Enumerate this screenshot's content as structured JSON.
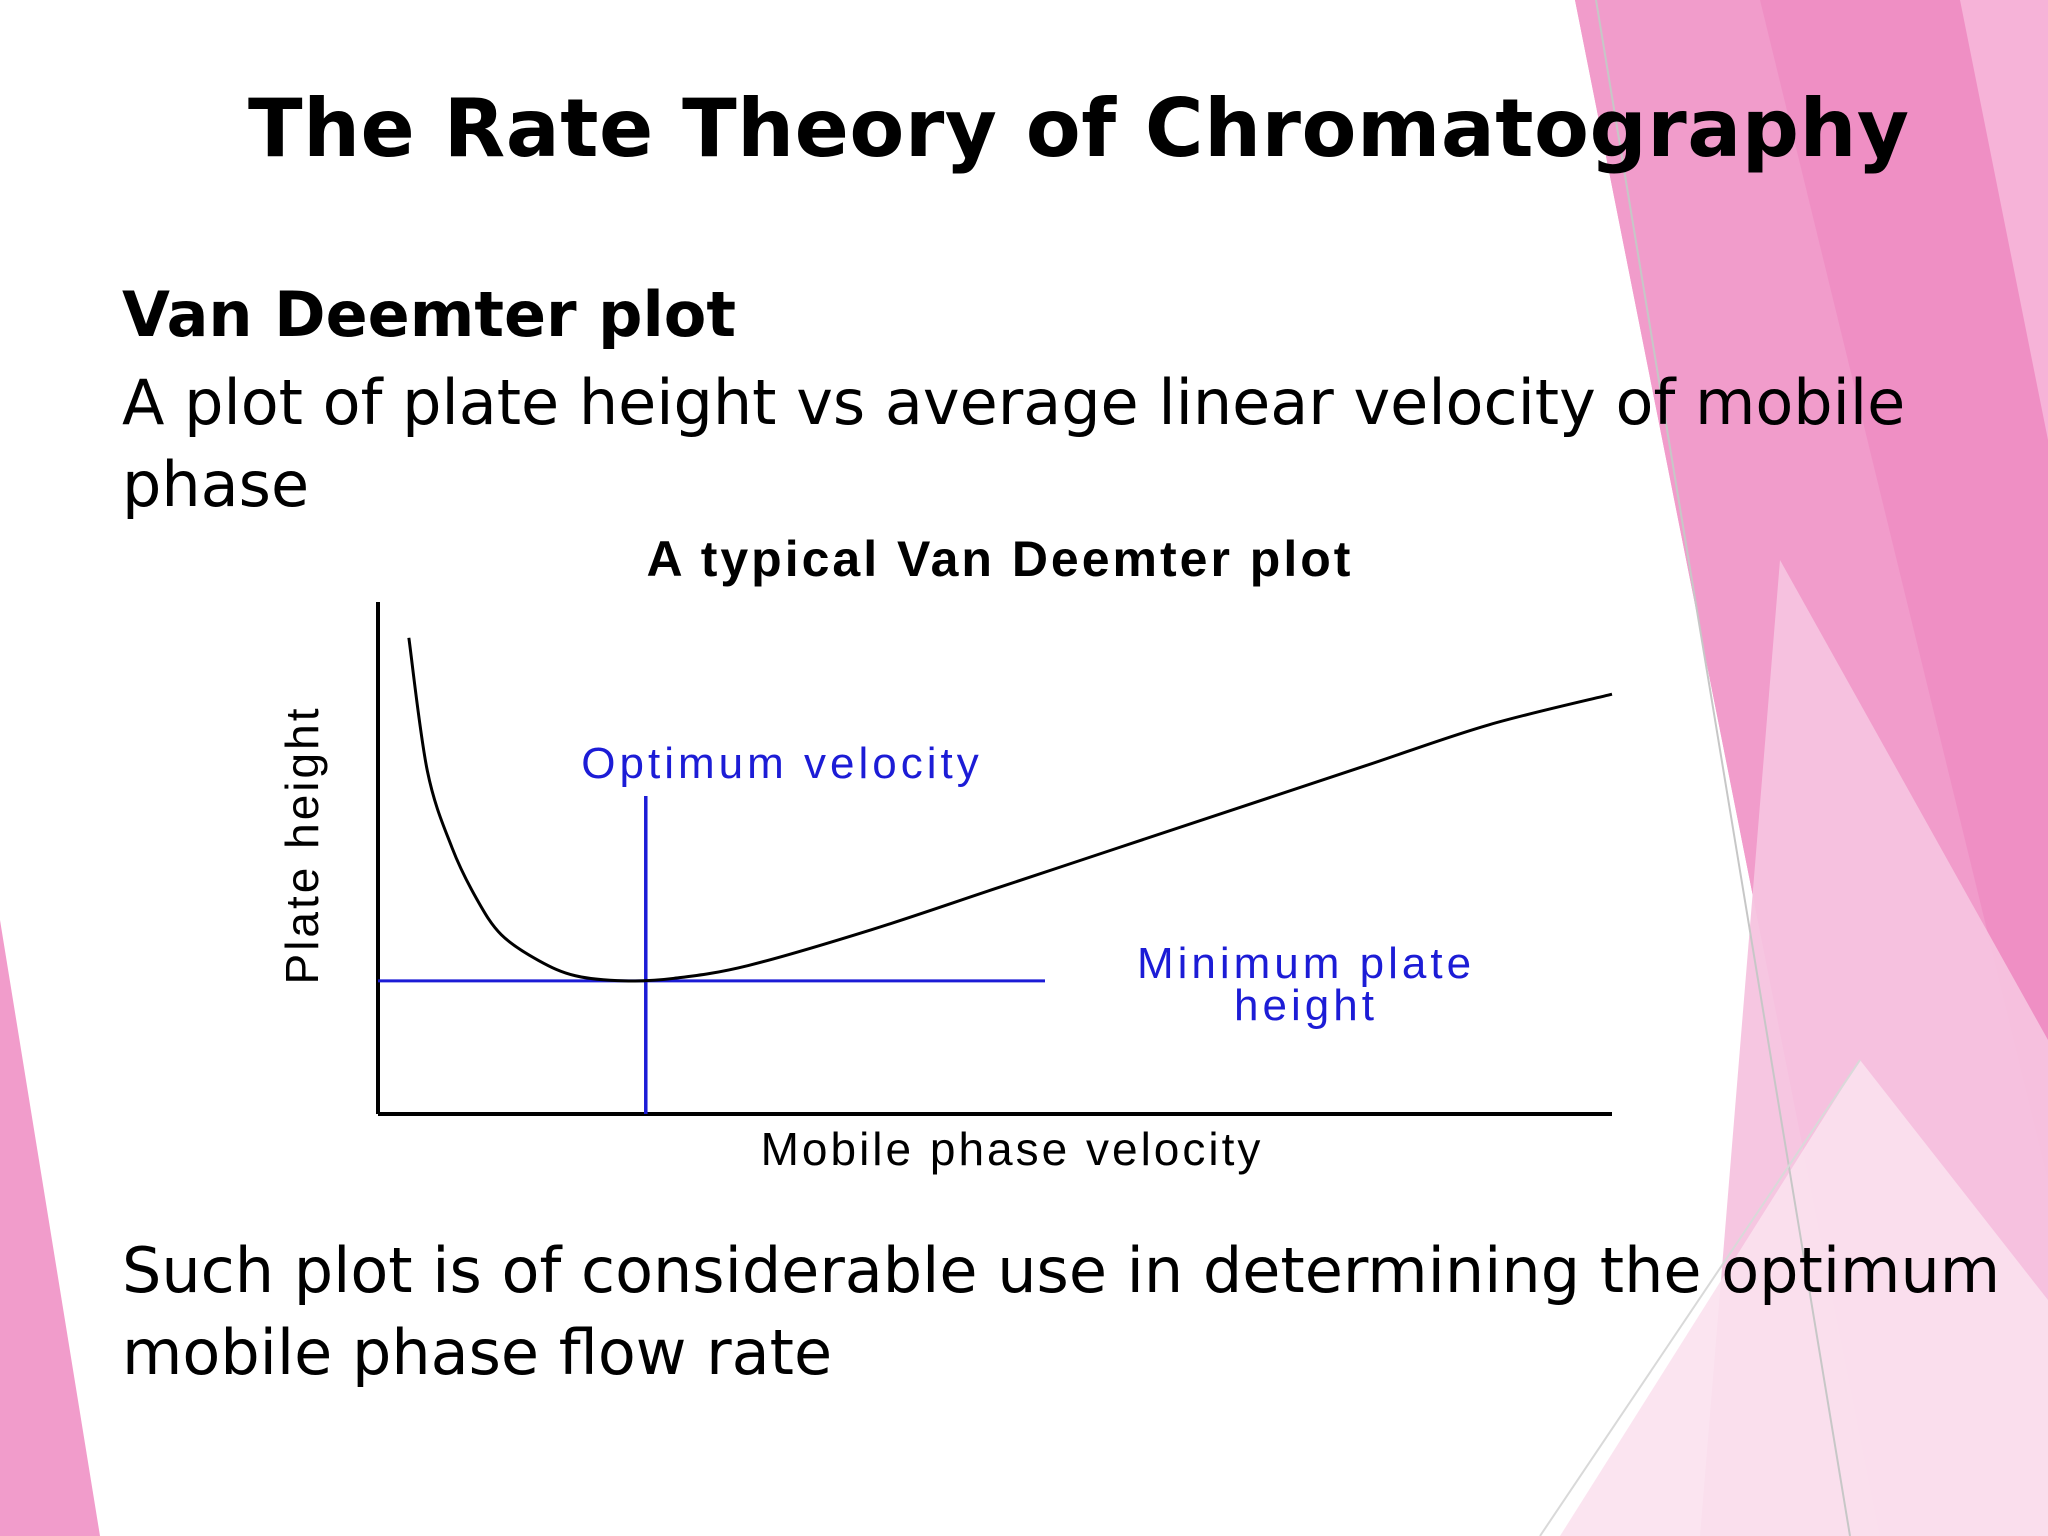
{
  "slide": {
    "title": "The Rate Theory of Chromatography",
    "subheading": "Van Deemter plot",
    "description": "A plot of plate height vs average linear velocity of mobile phase",
    "conclusion": "Such plot is of considerable use in determining the optimum mobile phase flow rate"
  },
  "theme": {
    "accent": "#ef8fc4",
    "accent_light": "#f6c3df",
    "accent_pale": "#fbe1ee",
    "annotation_color": "#1c1cd6"
  },
  "chart_data": {
    "type": "line",
    "title": "A typical Van Deemter plot",
    "xlabel": "Mobile phase velocity",
    "ylabel": "Plate height",
    "grid": false,
    "xlim": [
      0,
      1
    ],
    "ylim": [
      0,
      1
    ],
    "series": [
      {
        "x": [
          0.025,
          0.04,
          0.06,
          0.08,
          0.1,
          0.13,
          0.16,
          0.2,
          0.24,
          0.3,
          0.4,
          0.5,
          0.6,
          0.7,
          0.8,
          0.9,
          1.0
        ],
        "values": [
          0.93,
          0.67,
          0.52,
          0.42,
          0.35,
          0.3,
          0.27,
          0.26,
          0.265,
          0.29,
          0.36,
          0.44,
          0.52,
          0.6,
          0.68,
          0.76,
          0.82
        ]
      }
    ],
    "annotations": [
      {
        "text": "Optimum velocity",
        "line": "vertical",
        "value": 0.217
      },
      {
        "text": "Minimum plate height",
        "lines": [
          "Minimum plate",
          "height"
        ],
        "line": "horizontal",
        "value": 0.26
      }
    ]
  }
}
